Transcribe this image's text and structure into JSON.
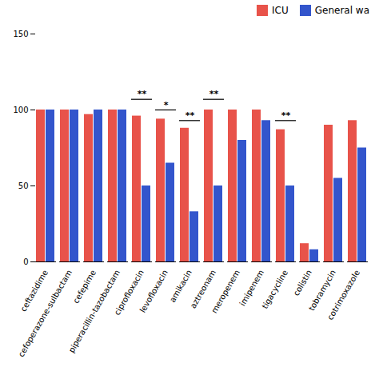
{
  "chart_data": {
    "type": "bar",
    "categories": [
      "ceftazidime",
      "cefoperazone-sulbactam",
      "cefepime",
      "piperacillin-tazobactam",
      "ciprofloxacin",
      "levofloxacin",
      "amikacin",
      "aztreonam",
      "meropenem",
      "imipenem",
      "tigacycline",
      "colistin",
      "tobramycin",
      "cotrimoxazole"
    ],
    "series": [
      {
        "name": "ICU",
        "color": "#E8534A",
        "values": [
          100,
          100,
          97,
          100,
          96,
          94,
          88,
          100,
          100,
          100,
          87,
          12,
          90,
          93
        ]
      },
      {
        "name": "General wa",
        "color": "#3355CC",
        "values": [
          100,
          100,
          100,
          100,
          50,
          65,
          33,
          50,
          80,
          93,
          50,
          8,
          55,
          75
        ]
      }
    ],
    "ylim": [
      0,
      150
    ],
    "yticks": [
      0,
      50,
      100,
      150
    ],
    "grid": false,
    "legend": "upper right",
    "annotations": [
      {
        "category": "ciprofloxacin",
        "text": "**",
        "y": 107
      },
      {
        "category": "levofloxacin",
        "text": "*",
        "y": 100
      },
      {
        "category": "amikacin",
        "text": "**",
        "y": 93
      },
      {
        "category": "aztreonam",
        "text": "**",
        "y": 107
      },
      {
        "category": "tigacycline",
        "text": "**",
        "y": 93
      }
    ]
  }
}
